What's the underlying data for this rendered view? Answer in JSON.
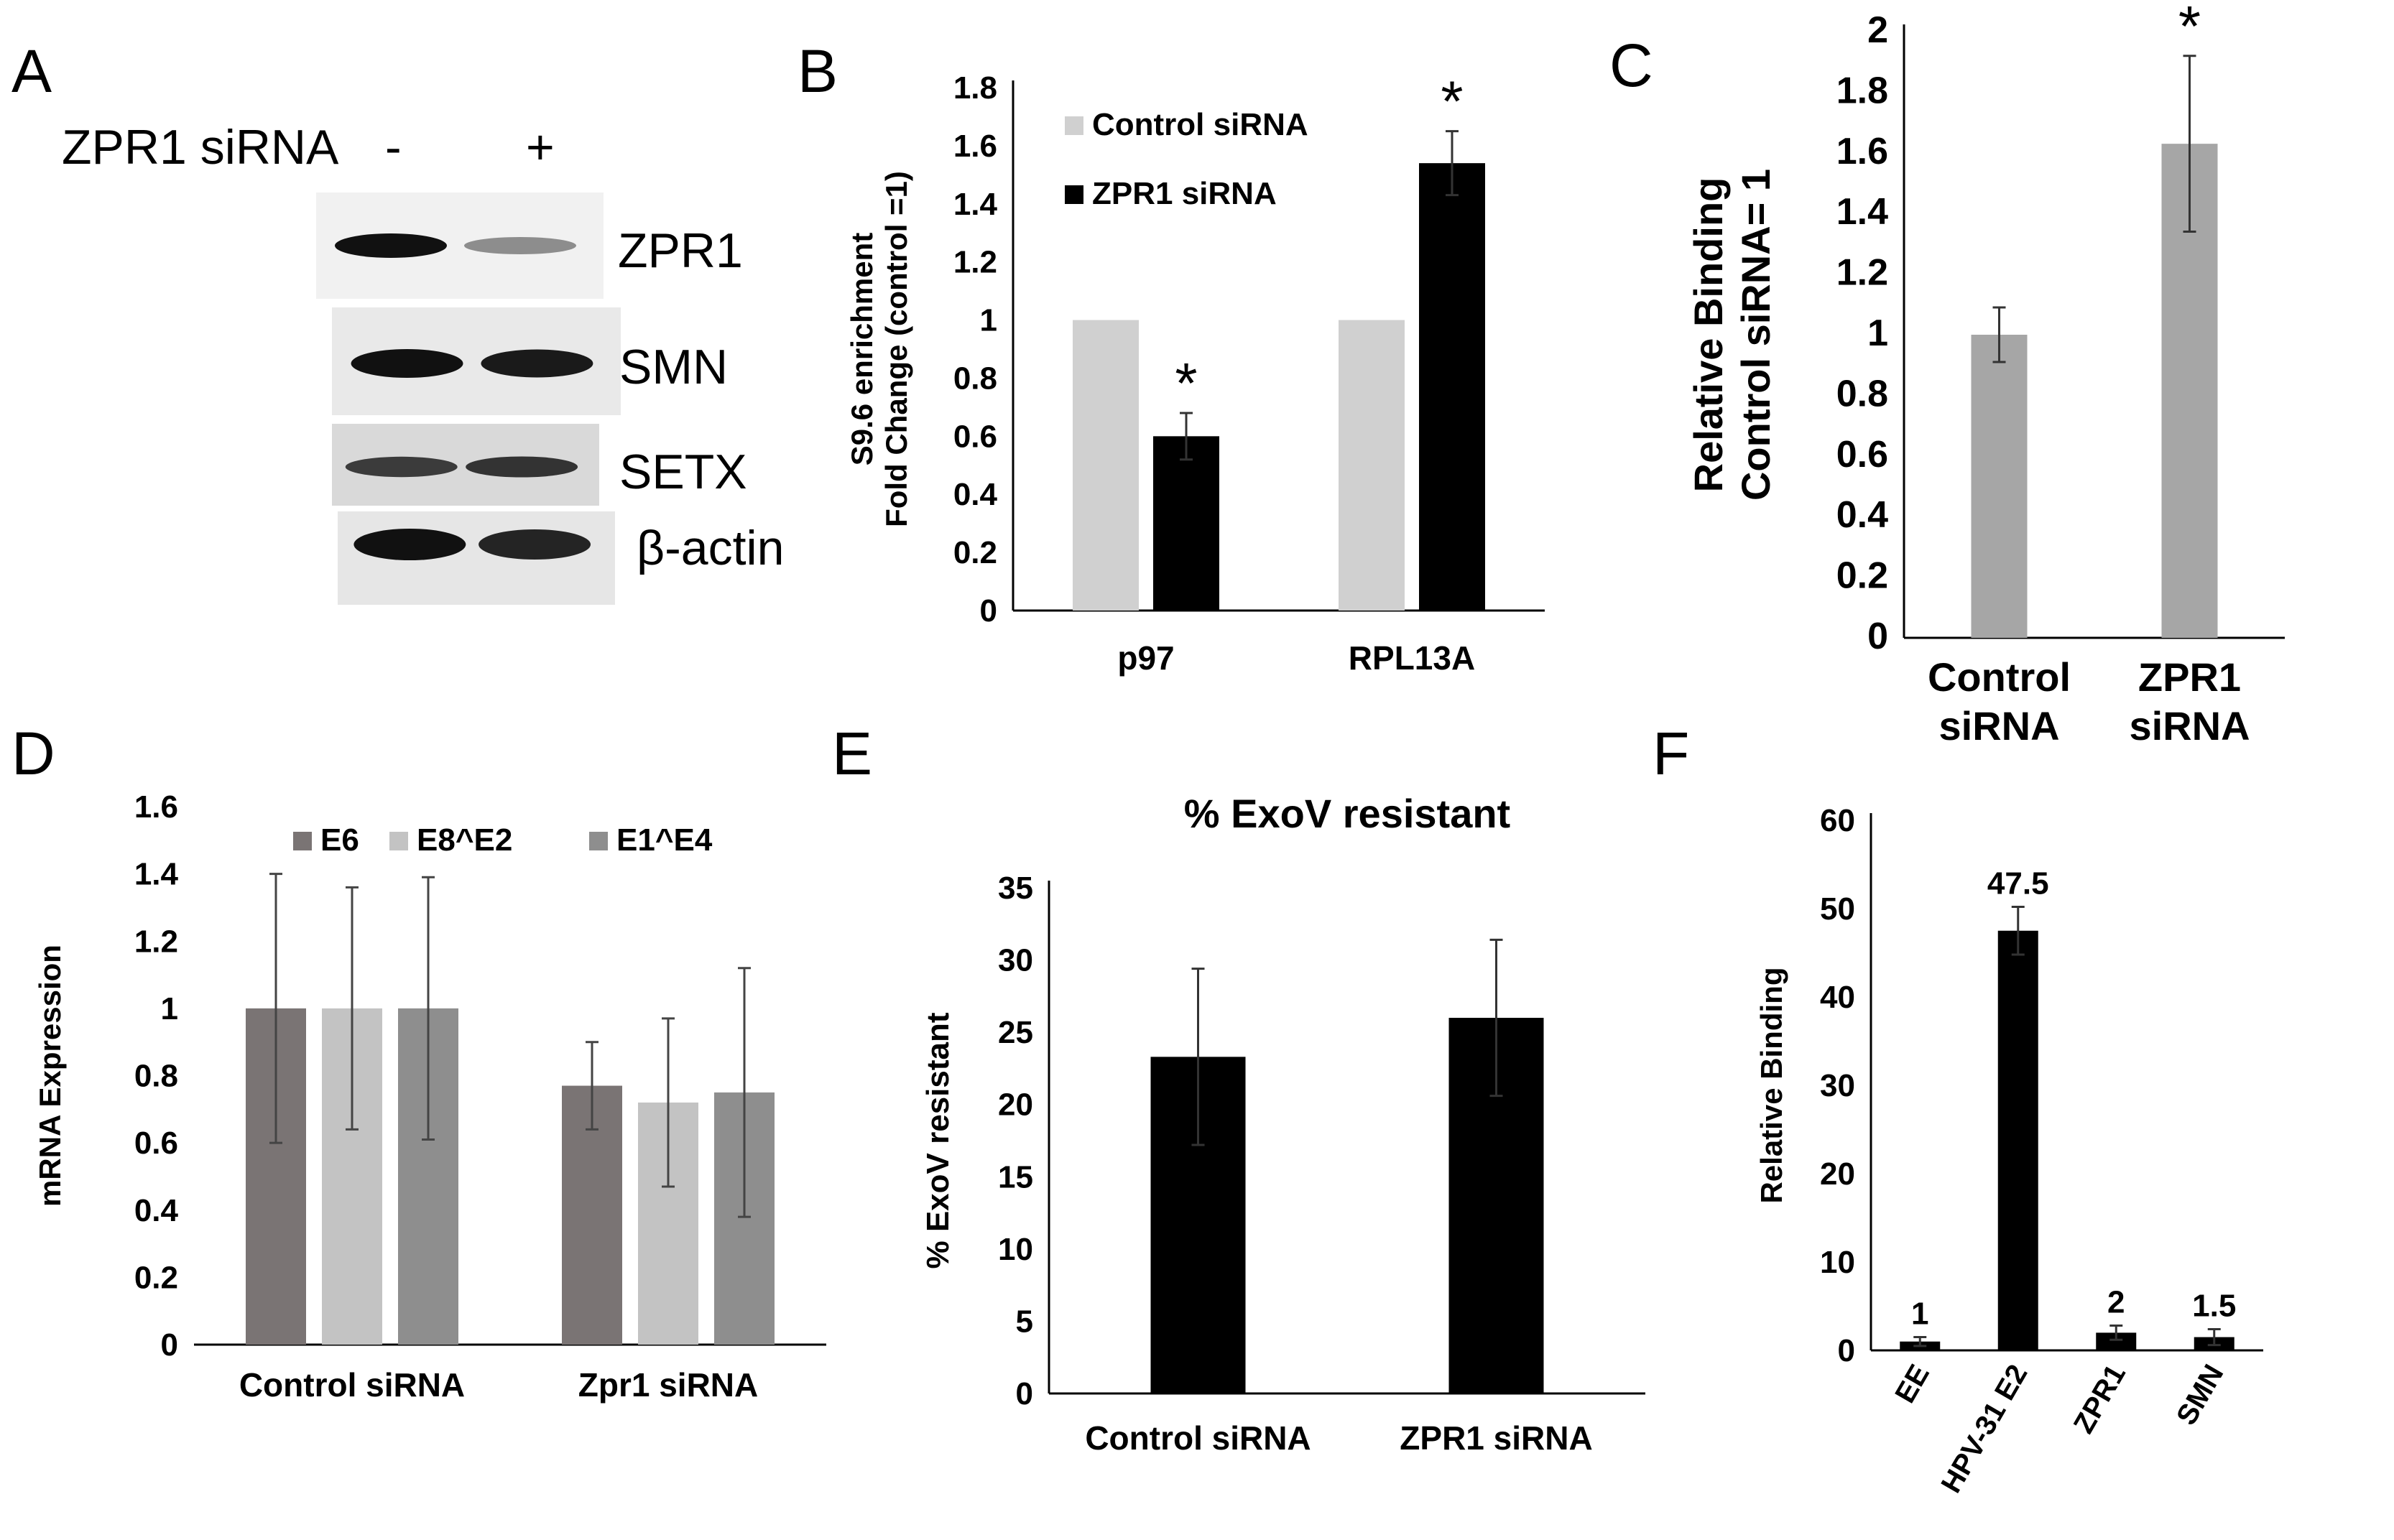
{
  "panels": {
    "A": "A",
    "B": "B",
    "C": "C",
    "D": "D",
    "E": "E",
    "F": "F"
  },
  "western_blot": {
    "header_label": "ZPR1 siRNA",
    "lanes": [
      "-",
      "+"
    ],
    "bands": [
      {
        "name": "ZPR1",
        "lane_intensity": [
          1.0,
          0.35
        ]
      },
      {
        "name": "SMN",
        "lane_intensity": [
          1.0,
          0.95
        ]
      },
      {
        "name": "SETX",
        "lane_intensity": [
          0.75,
          0.8
        ]
      },
      {
        "name": "β-actin",
        "lane_intensity": [
          1.0,
          0.9
        ]
      }
    ]
  },
  "chart_data": [
    {
      "panel": "B",
      "type": "bar",
      "categories": [
        "p97",
        "RPL13A"
      ],
      "series": [
        {
          "name": "Control siRNA",
          "values": [
            1.0,
            1.0
          ],
          "errors": [
            0.0,
            0.0
          ],
          "color": "#d0d0d0"
        },
        {
          "name": "ZPR1 siRNA",
          "values": [
            0.6,
            1.54
          ],
          "errors": [
            0.08,
            0.11
          ],
          "color": "#000000"
        }
      ],
      "significance": [
        {
          "series": 1,
          "category": 0,
          "mark": "*"
        },
        {
          "series": 1,
          "category": 1,
          "mark": "*"
        }
      ],
      "ylabel_lines": [
        "S9.6 enrichment",
        "Fold Change (control =1)"
      ],
      "ylim": [
        0,
        1.8
      ],
      "yticks": [
        "0",
        "0.2",
        "0.4",
        "0.6",
        "0.8",
        "1",
        "1.2",
        "1.4",
        "1.6",
        "1.8"
      ],
      "legend": "top-left"
    },
    {
      "panel": "C",
      "type": "bar",
      "categories": [
        [
          "Control",
          "siRNA"
        ],
        [
          "ZPR1",
          "siRNA"
        ]
      ],
      "series": [
        {
          "name": "",
          "values": [
            1.0,
            1.63
          ],
          "errors": [
            0.09,
            0.29
          ],
          "color": "#a6a6a6"
        }
      ],
      "significance": [
        {
          "series": 0,
          "category": 1,
          "mark": "*"
        }
      ],
      "ylabel_lines": [
        "Relative Binding",
        "Control siRNA= 1"
      ],
      "ylim": [
        0,
        2
      ],
      "yticks": [
        "0",
        "0.2",
        "0.4",
        "0.6",
        "0.8",
        "1",
        "1.2",
        "1.4",
        "1.6",
        "1.8",
        "2"
      ]
    },
    {
      "panel": "D",
      "type": "bar",
      "categories": [
        "Control siRNA",
        "Zpr1 siRNA"
      ],
      "series": [
        {
          "name": "E6",
          "values": [
            1.0,
            0.77
          ],
          "errors": [
            0.4,
            0.13
          ],
          "color": "#7a7474"
        },
        {
          "name": "E8^E2",
          "values": [
            1.0,
            0.72
          ],
          "errors": [
            0.36,
            0.25
          ],
          "color": "#c3c3c3"
        },
        {
          "name": "E1^E4",
          "values": [
            1.0,
            0.75
          ],
          "errors": [
            0.39,
            0.37
          ],
          "color": "#8e8e8e"
        }
      ],
      "ylabel_lines": [
        "mRNA Expression"
      ],
      "ylim": [
        0,
        1.6
      ],
      "yticks": [
        "0",
        "0.2",
        "0.4",
        "0.6",
        "0.8",
        "1",
        "1.2",
        "1.4",
        "1.6"
      ],
      "legend": "top-center"
    },
    {
      "panel": "E",
      "type": "bar",
      "title": "% ExoV resistant",
      "categories": [
        "Control siRNA",
        "ZPR1 siRNA"
      ],
      "series": [
        {
          "name": "",
          "values": [
            23.3,
            26.0
          ],
          "errors": [
            6.1,
            5.4
          ],
          "color": "#000000"
        }
      ],
      "ylabel_lines": [
        "% ExoV resistant"
      ],
      "ylim": [
        0,
        35
      ],
      "yticks": [
        "0",
        "5",
        "10",
        "15",
        "20",
        "25",
        "30",
        "35"
      ]
    },
    {
      "panel": "F",
      "type": "bar",
      "categories": [
        "EE",
        "HPV-31 E2",
        "ZPR1",
        "SMN"
      ],
      "series": [
        {
          "name": "",
          "values": [
            1,
            47.5,
            2,
            1.5
          ],
          "errors": [
            0.5,
            2.7,
            0.8,
            0.9
          ],
          "color": "#000000"
        }
      ],
      "data_labels": [
        "1",
        "47.5",
        "2",
        "1.5"
      ],
      "ylabel_lines": [
        "Relative Binding"
      ],
      "ylim": [
        0,
        60
      ],
      "yticks": [
        "0",
        "10",
        "20",
        "30",
        "40",
        "50",
        "60"
      ],
      "rotated_categories": true
    }
  ]
}
